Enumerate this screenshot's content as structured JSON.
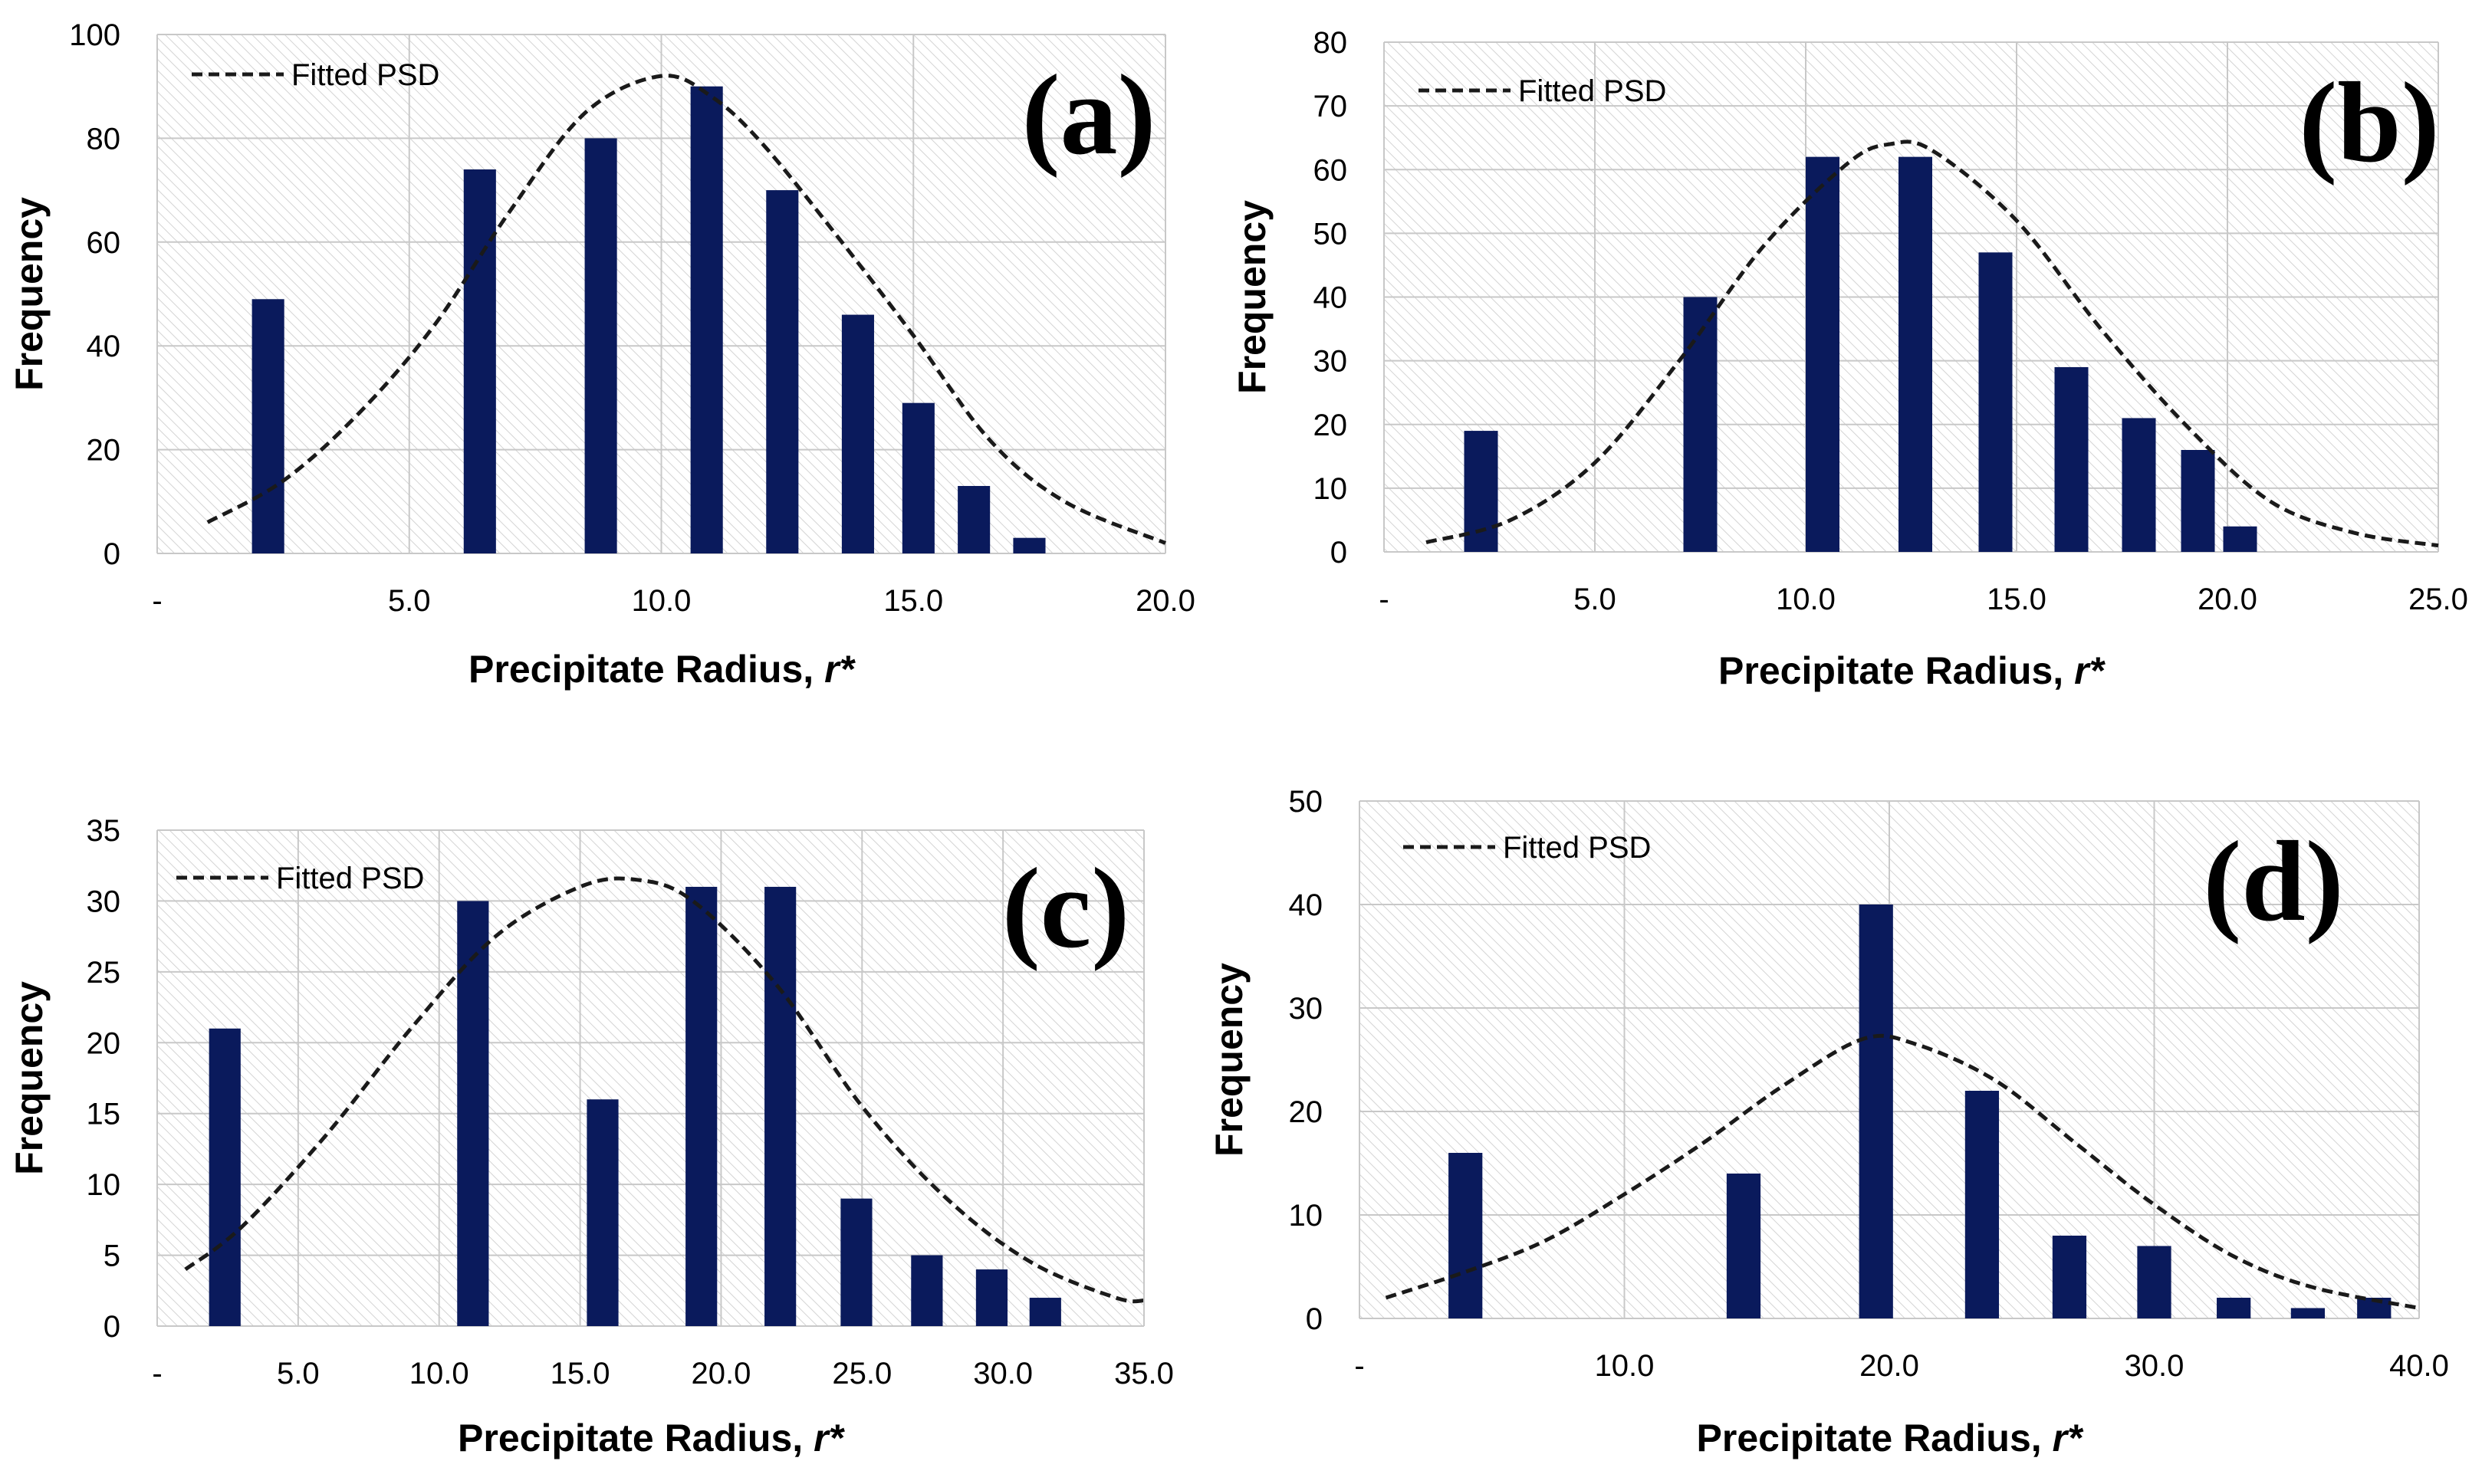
{
  "chart_data": [
    {
      "type": "bar",
      "panel_label": "(a)",
      "xlabel": "Precipitate Radius, ",
      "xlabel_italic": "r*",
      "ylabel": "Frequency",
      "xlim": [
        0,
        20
      ],
      "ylim": [
        0,
        100
      ],
      "xticks": [
        0,
        5,
        10,
        15,
        20
      ],
      "xtick_labels": [
        "-",
        "5.0",
        "10.0",
        "15.0",
        "20.0"
      ],
      "yticks": [
        0,
        20,
        40,
        60,
        80,
        100
      ],
      "ytick_labels": [
        "0",
        "20",
        "40",
        "60",
        "80",
        "100"
      ],
      "bar_color": "#0a1a5c",
      "bars": {
        "x": [
          2.2,
          6.4,
          8.8,
          10.9,
          12.4,
          13.9,
          15.1,
          16.2,
          17.3
        ],
        "values": [
          49,
          74,
          80,
          90,
          70,
          46,
          29,
          13,
          3
        ]
      },
      "legend": {
        "label": "Fitted PSD",
        "position": "top-left"
      },
      "fit_line": {
        "x": [
          1,
          2.5,
          4,
          5.5,
          7,
          8.5,
          10,
          11,
          12,
          13.5,
          15,
          16.5,
          18,
          20
        ],
        "y": [
          6,
          14,
          27,
          44,
          66,
          85,
          92,
          88,
          79,
          61,
          42,
          22,
          10,
          2
        ]
      },
      "grid": true
    },
    {
      "type": "bar",
      "panel_label": "(b)",
      "xlabel": "Precipitate Radius, ",
      "xlabel_italic": "r*",
      "ylabel": "Frequency",
      "xlim": [
        0,
        25
      ],
      "ylim": [
        0,
        80
      ],
      "xticks": [
        0,
        5,
        10,
        15,
        20,
        25
      ],
      "xtick_labels": [
        "-",
        "5.0",
        "10.0",
        "15.0",
        "20.0",
        "25.0"
      ],
      "yticks": [
        0,
        10,
        20,
        30,
        40,
        50,
        60,
        70,
        80
      ],
      "ytick_labels": [
        "0",
        "10",
        "20",
        "30",
        "40",
        "50",
        "60",
        "70",
        "80"
      ],
      "bar_color": "#0a1a5c",
      "bars": {
        "x": [
          2.3,
          7.5,
          10.4,
          12.6,
          14.5,
          16.3,
          17.9,
          19.3,
          20.3
        ],
        "values": [
          19,
          40,
          62,
          62,
          47,
          29,
          21,
          16,
          4
        ]
      },
      "legend": {
        "label": "Fitted PSD",
        "position": "top-left"
      },
      "fit_line": {
        "x": [
          1,
          3,
          5,
          7,
          9,
          11,
          12,
          13,
          15,
          17,
          19,
          21,
          23,
          25
        ],
        "y": [
          1.5,
          5,
          14,
          30,
          48,
          61,
          64,
          63,
          52,
          35,
          20,
          8,
          3,
          1
        ]
      },
      "grid": true
    },
    {
      "type": "bar",
      "panel_label": "(c)",
      "xlabel": "Precipitate Radius, ",
      "xlabel_italic": "r*",
      "ylabel": "Frequency",
      "xlim": [
        0,
        35
      ],
      "ylim": [
        0,
        35
      ],
      "xticks": [
        0,
        5,
        10,
        15,
        20,
        25,
        30,
        35
      ],
      "xtick_labels": [
        "-",
        "5.0",
        "10.0",
        "15.0",
        "20.0",
        "25.0",
        "30.0",
        "35.0"
      ],
      "yticks": [
        0,
        5,
        10,
        15,
        20,
        25,
        30,
        35
      ],
      "ytick_labels": [
        "0",
        "5",
        "10",
        "15",
        "20",
        "25",
        "30",
        "35"
      ],
      "bar_color": "#0a1a5c",
      "bars": {
        "x": [
          2.4,
          11.2,
          15.8,
          19.3,
          22.1,
          24.8,
          27.3,
          29.6,
          31.5
        ],
        "values": [
          21,
          30,
          16,
          31,
          31,
          9,
          5,
          4,
          2
        ]
      },
      "legend": {
        "label": "Fitted PSD",
        "position": "top-left"
      },
      "fit_line": {
        "x": [
          1,
          3,
          6,
          9,
          12,
          15,
          17,
          19,
          22,
          25,
          28,
          31,
          34,
          35
        ],
        "y": [
          4,
          7,
          13.5,
          21,
          27.5,
          31,
          31.5,
          30,
          24,
          15.5,
          9,
          4.5,
          2,
          1.8
        ]
      },
      "grid": true
    },
    {
      "type": "bar",
      "panel_label": "(d)",
      "xlabel": "Precipitate Radius, ",
      "xlabel_italic": "r*",
      "ylabel": "Frequency",
      "xlim": [
        0,
        40
      ],
      "ylim": [
        0,
        50
      ],
      "xticks": [
        0,
        10,
        20,
        30,
        40
      ],
      "xtick_labels": [
        "-",
        "10.0",
        "20.0",
        "30.0",
        "40.0"
      ],
      "yticks": [
        0,
        10,
        20,
        30,
        40,
        50
      ],
      "ytick_labels": [
        "0",
        "10",
        "20",
        "30",
        "40",
        "50"
      ],
      "bar_color": "#0a1a5c",
      "bars": {
        "x": [
          4,
          14.5,
          19.5,
          23.5,
          26.8,
          30,
          33,
          35.8,
          38.3
        ],
        "values": [
          16,
          14,
          40,
          22,
          8,
          7,
          2,
          1,
          2
        ]
      },
      "legend": {
        "label": "Fitted PSD",
        "position": "top-left"
      },
      "fit_line": {
        "x": [
          1,
          4,
          7,
          10,
          13,
          16,
          19,
          21,
          24,
          27,
          30,
          33,
          36,
          40
        ],
        "y": [
          2,
          4.5,
          7.5,
          12,
          17,
          22.5,
          27,
          26.5,
          23,
          17,
          11,
          6,
          3,
          1
        ]
      },
      "grid": true
    }
  ]
}
